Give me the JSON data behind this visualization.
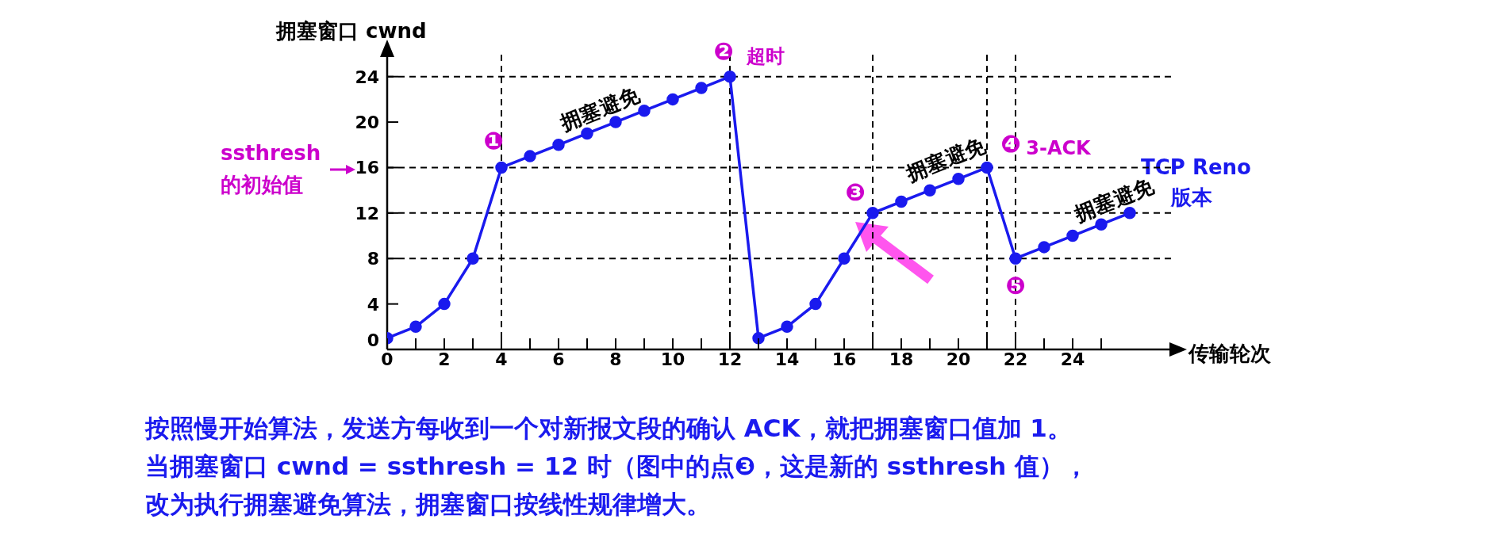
{
  "chart_data": {
    "type": "line",
    "xlabel": "传输轮次",
    "ylabel": "拥塞窗口  cwnd",
    "x": [
      0,
      1,
      2,
      3,
      4,
      5,
      6,
      7,
      8,
      9,
      10,
      11,
      12,
      13,
      14,
      15,
      16,
      17,
      18,
      19,
      20,
      21,
      22,
      23,
      24,
      25,
      26
    ],
    "series": [
      {
        "color": "#1a1aee",
        "values": [
          1,
          2,
          4,
          8,
          16,
          17,
          18,
          19,
          20,
          21,
          22,
          23,
          24,
          1,
          2,
          4,
          8,
          12,
          13,
          14,
          15,
          16,
          8,
          9,
          10,
          11,
          12
        ]
      }
    ],
    "xlim": [
      0,
      27.5
    ],
    "ylim": [
      0,
      26
    ],
    "xticks": [
      0,
      {
        "value": 1,
        "label": null
      },
      2,
      {
        "value": 3,
        "label": null
      },
      4,
      {
        "value": 5,
        "label": null
      },
      6,
      {
        "value": 7,
        "label": null
      },
      8,
      {
        "value": 9,
        "label": null
      },
      10,
      {
        "value": 11,
        "label": null
      },
      12,
      {
        "value": 13,
        "label": null
      },
      14,
      {
        "value": 15,
        "label": null
      },
      16,
      {
        "value": 17,
        "label": null
      },
      18,
      {
        "value": 19,
        "label": null
      },
      20,
      {
        "value": 21,
        "label": null
      },
      22,
      {
        "value": 23,
        "label": null
      },
      24,
      {
        "value": 25,
        "label": null
      }
    ],
    "yticks": [
      0,
      4,
      8,
      12,
      16,
      20,
      24
    ],
    "grid": false,
    "marker": "circle",
    "line_style": "solid",
    "ref_lines": [
      {
        "axis": "y",
        "value": 24,
        "color": "#000000",
        "line_style": "dashed"
      },
      {
        "axis": "y",
        "value": 16,
        "color": "#000000",
        "line_style": "dashed"
      },
      {
        "axis": "y",
        "value": 12,
        "color": "#000000",
        "line_style": "dashed"
      },
      {
        "axis": "y",
        "value": 8,
        "color": "#000000",
        "line_style": "dashed"
      },
      {
        "axis": "x",
        "value": 4,
        "color": "#000000",
        "line_style": "dashed"
      },
      {
        "axis": "x",
        "value": 12,
        "color": "#000000",
        "line_style": "dashed"
      },
      {
        "axis": "x",
        "value": 17,
        "color": "#000000",
        "line_style": "dashed"
      },
      {
        "axis": "x",
        "value": 21,
        "color": "#000000",
        "line_style": "dashed"
      },
      {
        "axis": "x",
        "value": 22,
        "color": "#000000",
        "line_style": "dashed"
      }
    ],
    "annotations": [
      {
        "text": "❶",
        "x": 4,
        "y": 16
      },
      {
        "text": "拥塞避免",
        "x": 5,
        "y": 17
      },
      {
        "text": "❷",
        "x": 12,
        "y": 24
      },
      {
        "text": "超时",
        "x": 12,
        "y": 24
      },
      {
        "text": "❸",
        "x": 17,
        "y": 12
      },
      {
        "text": "拥塞避免",
        "x": 18,
        "y": 13
      },
      {
        "text": "❹",
        "x": 21,
        "y": 16
      },
      {
        "text": "3-ACK",
        "x": 21,
        "y": 16
      },
      {
        "text": "❺",
        "x": 22,
        "y": 8
      },
      {
        "text": "拥塞避免",
        "x": 23,
        "y": 9
      },
      "TCP Reno",
      "版本",
      "ssthresh",
      "的初始值",
      "按照慢开始算法，发送方每收到一个对新报文段的确认 ACK，就把拥塞窗口值加 1。",
      "当拥塞窗口 cwnd = ssthresh = 12 时（图中的点❸，这是新的 ssthresh 值），",
      "改为执行拥塞避免算法，拥塞窗口按线性规律增大。"
    ]
  }
}
